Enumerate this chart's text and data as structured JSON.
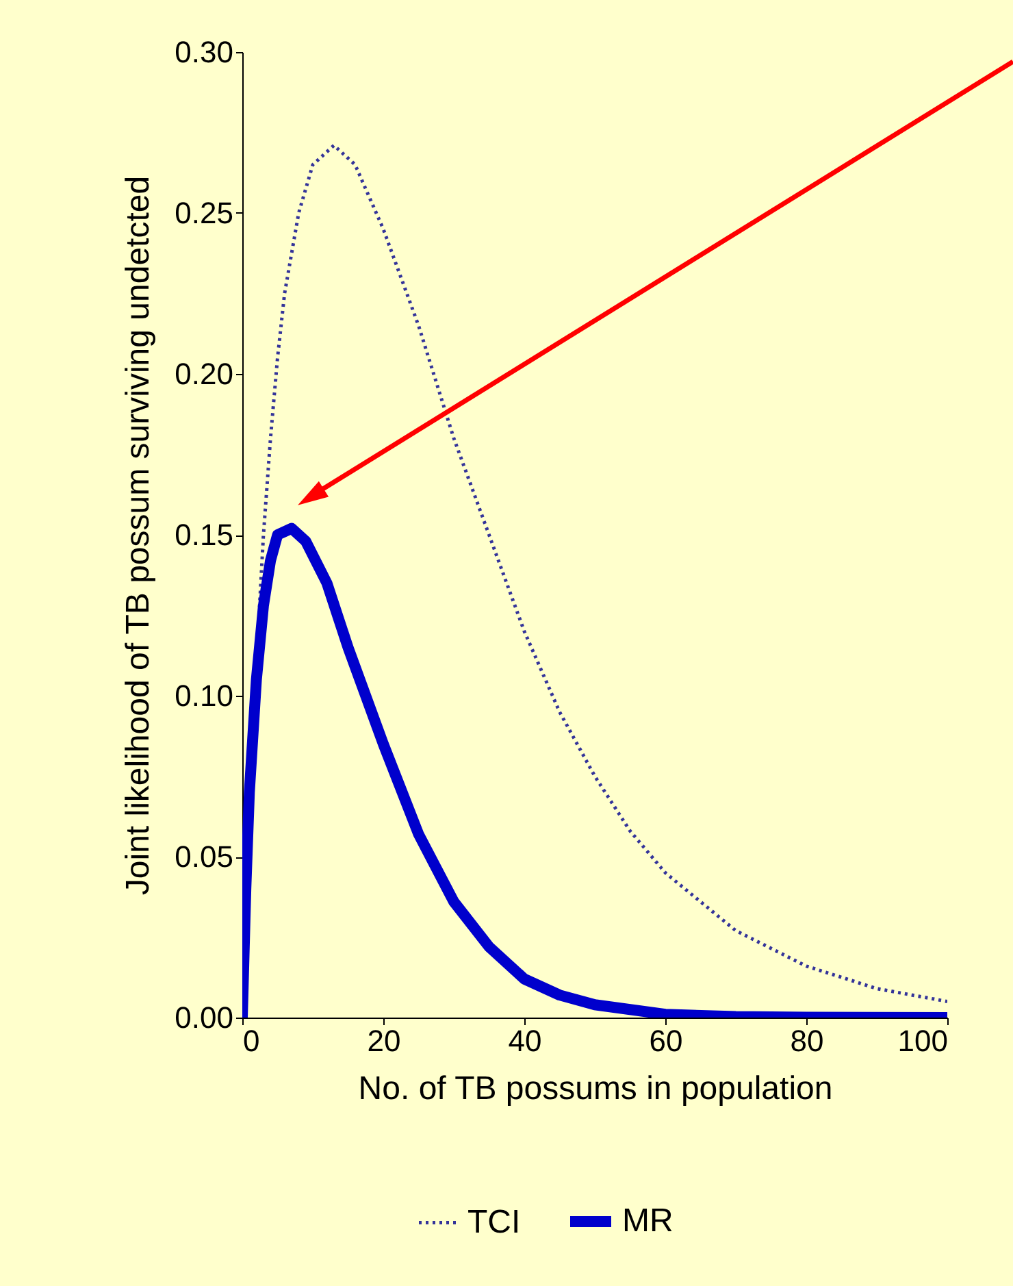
{
  "chart_data": {
    "type": "line",
    "xlabel": "No. of TB possums in population",
    "ylabel": "Joint likelihood of TB possum surviving undetcted",
    "series": [
      {
        "name": "TCI",
        "color": "#333399",
        "line_style": "dotted",
        "x": [
          0,
          1,
          2,
          3,
          4,
          5,
          6,
          8,
          10,
          13,
          16,
          20,
          25,
          30,
          35,
          40,
          45,
          50,
          55,
          60,
          70,
          80,
          90,
          100
        ],
        "values": [
          0,
          0.06,
          0.11,
          0.15,
          0.18,
          0.205,
          0.225,
          0.25,
          0.265,
          0.271,
          0.265,
          0.245,
          0.215,
          0.18,
          0.15,
          0.12,
          0.095,
          0.075,
          0.058,
          0.045,
          0.027,
          0.016,
          0.009,
          0.005
        ]
      },
      {
        "name": "MR",
        "color": "#0000cc",
        "line_style": "solid",
        "x": [
          0,
          0.5,
          1,
          2,
          3,
          4,
          5,
          7,
          9,
          12,
          15,
          20,
          25,
          30,
          35,
          40,
          45,
          50,
          60,
          70,
          80,
          100
        ],
        "values": [
          0,
          0.04,
          0.07,
          0.105,
          0.128,
          0.142,
          0.15,
          0.152,
          0.148,
          0.135,
          0.115,
          0.085,
          0.057,
          0.036,
          0.022,
          0.012,
          0.007,
          0.004,
          0.001,
          0.0003,
          0.0001,
          0
        ]
      }
    ],
    "xlim": [
      0,
      100
    ],
    "xticks": [
      0,
      20,
      40,
      60,
      80,
      100
    ],
    "ylim": [
      0,
      0.3
    ],
    "yticks": [
      {
        "value": 0,
        "label": "0.00"
      },
      {
        "value": 0.05,
        "label": "0.05"
      },
      {
        "value": 0.1,
        "label": "0.10"
      },
      {
        "value": 0.15,
        "label": "0.15"
      },
      {
        "value": 0.2,
        "label": "0.20"
      },
      {
        "value": 0.25,
        "label": "0.25"
      },
      {
        "value": 0.3,
        "label": "0.30"
      }
    ],
    "grid": false,
    "legend": "bottom",
    "marker": "none"
  }
}
